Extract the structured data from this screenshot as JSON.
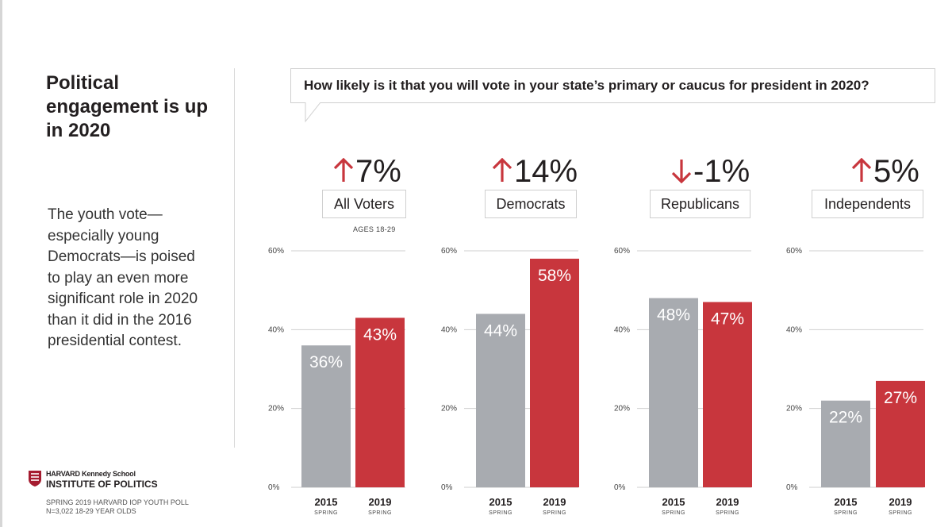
{
  "title": "Political engagement is up in 2020",
  "body_text": "The youth vote— especially young Democrats—is poised to play an even more significant role in 2020 than it did in the 2016 presidential contest.",
  "logo": {
    "line1": "HARVARD Kennedy School",
    "line2": "INSTITUTE OF POLITICS"
  },
  "source": {
    "line1": "SPRING 2019 HARVARD IOP YOUTH POLL",
    "line2": "N=3,022 18-29 YEAR OLDS"
  },
  "question": "How likely is it that you will vote in your state’s primary or caucus for president in 2020?",
  "note": "AGES 18-29",
  "colors": {
    "gray": "#a8abb0",
    "red": "#c8363d",
    "text": "#231f20",
    "grid": "#cfcfcf"
  },
  "groups": [
    {
      "name": "All Voters",
      "change": "7%",
      "direction": "up"
    },
    {
      "name": "Democrats",
      "change": "14%",
      "direction": "up"
    },
    {
      "name": "Republicans",
      "change": "-1%",
      "direction": "down"
    },
    {
      "name": "Independents",
      "change": "5%",
      "direction": "up"
    }
  ],
  "chart_data": {
    "type": "bar",
    "title": "How likely is it that you will vote in your state’s primary or caucus for president in 2020?",
    "categories": [
      "2015",
      "2019"
    ],
    "category_sublabel": "SPRING",
    "ylim": [
      0,
      60
    ],
    "yticks": [
      0,
      20,
      40,
      60
    ],
    "ytick_labels": [
      "0%",
      "20%",
      "40%",
      "60%"
    ],
    "panels": [
      {
        "name": "All Voters",
        "values": [
          36,
          43
        ],
        "labels": [
          "36%",
          "43%"
        ]
      },
      {
        "name": "Democrats",
        "values": [
          44,
          58
        ],
        "labels": [
          "44%",
          "58%"
        ]
      },
      {
        "name": "Republicans",
        "values": [
          48,
          47
        ],
        "labels": [
          "48%",
          "47%"
        ]
      },
      {
        "name": "Independents",
        "values": [
          22,
          27
        ],
        "labels": [
          "22%",
          "27%"
        ]
      }
    ]
  }
}
